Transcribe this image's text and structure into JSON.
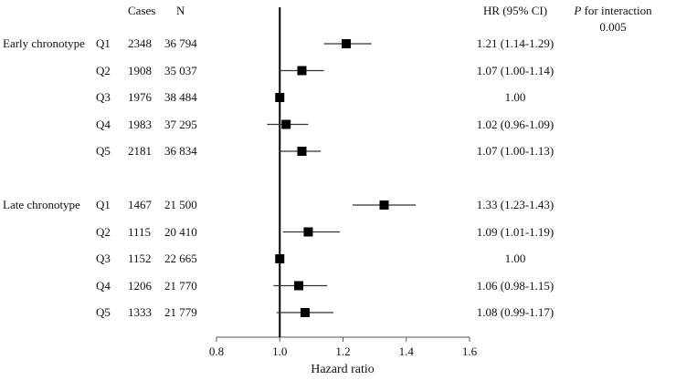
{
  "chart_data": {
    "type": "forest",
    "xlabel": "Hazard ratio",
    "xlim": [
      0.8,
      1.6
    ],
    "xticks": [
      "0.8",
      "1.0",
      "1.2",
      "1.4",
      "1.6"
    ],
    "reference_line": 1.0,
    "headers": {
      "cases": "Cases",
      "n": "N",
      "hr": "HR (95% CI)"
    },
    "interaction": {
      "label_italic": "P",
      "label_rest": " for interaction",
      "value": "0.005"
    },
    "groups": [
      {
        "name": "Early chronotype",
        "rows": [
          {
            "q": "Q1",
            "cases": "2348",
            "n": "36 794",
            "hr": 1.21,
            "lo": 1.14,
            "hi": 1.29,
            "text": "1.21 (1.14-1.29)"
          },
          {
            "q": "Q2",
            "cases": "1908",
            "n": "35 037",
            "hr": 1.07,
            "lo": 1.0,
            "hi": 1.14,
            "text": "1.07 (1.00-1.14)"
          },
          {
            "q": "Q3",
            "cases": "1976",
            "n": "38 484",
            "hr": 1.0,
            "lo": 1.0,
            "hi": 1.0,
            "text": "1.00"
          },
          {
            "q": "Q4",
            "cases": "1983",
            "n": "37 295",
            "hr": 1.02,
            "lo": 0.96,
            "hi": 1.09,
            "text": "1.02 (0.96-1.09)"
          },
          {
            "q": "Q5",
            "cases": "2181",
            "n": "36 834",
            "hr": 1.07,
            "lo": 1.0,
            "hi": 1.13,
            "text": "1.07 (1.00-1.13)"
          }
        ]
      },
      {
        "name": "Late chronotype",
        "rows": [
          {
            "q": "Q1",
            "cases": "1467",
            "n": "21 500",
            "hr": 1.33,
            "lo": 1.23,
            "hi": 1.43,
            "text": "1.33 (1.23-1.43)"
          },
          {
            "q": "Q2",
            "cases": "1115",
            "n": "20 410",
            "hr": 1.09,
            "lo": 1.01,
            "hi": 1.19,
            "text": "1.09 (1.01-1.19)"
          },
          {
            "q": "Q3",
            "cases": "1152",
            "n": "22 665",
            "hr": 1.0,
            "lo": 1.0,
            "hi": 1.0,
            "text": "1.00"
          },
          {
            "q": "Q4",
            "cases": "1206",
            "n": "21 770",
            "hr": 1.06,
            "lo": 0.98,
            "hi": 1.15,
            "text": "1.06 (0.98-1.15)"
          },
          {
            "q": "Q5",
            "cases": "1333",
            "n": "21 779",
            "hr": 1.08,
            "lo": 0.99,
            "hi": 1.17,
            "text": "1.08 (0.99-1.17)"
          }
        ]
      }
    ]
  }
}
